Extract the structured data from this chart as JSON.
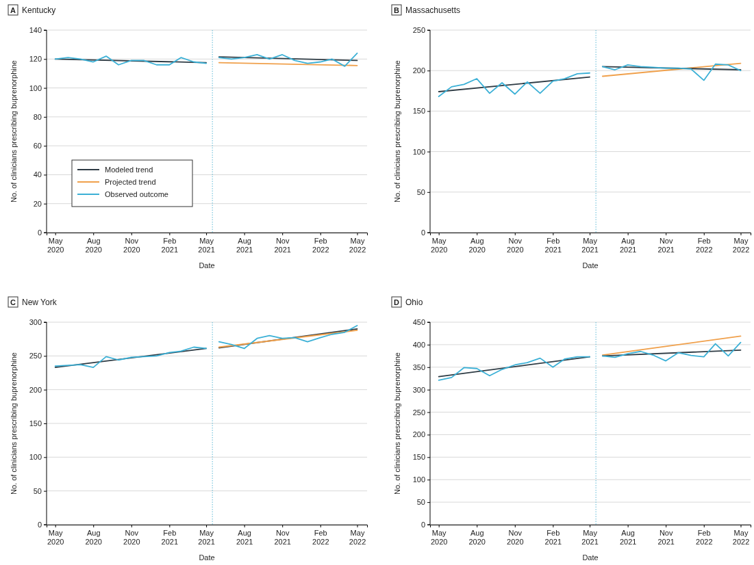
{
  "chart_data": [
    {
      "type": "line",
      "title": "A Kentucky",
      "xlabel": "Date",
      "ylabel": "No. of clinicians prescribing buprenorphine",
      "xlim": [
        "2020-04-10",
        "2022-05-25"
      ],
      "xticks": [
        {
          "value": "2020-05",
          "label": "May 2020"
        },
        {
          "value": "2020-08",
          "label": "Aug 2020"
        },
        {
          "value": "2020-11",
          "label": "Nov 2020"
        },
        {
          "value": "2021-02",
          "label": "Feb 2021"
        },
        {
          "value": "2021-05",
          "label": "May 2021"
        },
        {
          "value": "2021-08",
          "label": "Aug 2021"
        },
        {
          "value": "2021-11",
          "label": "Nov 2021"
        },
        {
          "value": "2022-02",
          "label": "Feb 2022"
        },
        {
          "value": "2022-05",
          "label": "May 2022"
        }
      ],
      "ylim": [
        0,
        140
      ],
      "yticks": [
        0,
        20,
        40,
        60,
        80,
        100,
        120,
        140
      ],
      "grid": "y",
      "legend": "bottom left",
      "marker": "none",
      "line_style": "solid",
      "ref_lines": [
        {
          "axis": "x",
          "value": "2021-05-16",
          "color": "#5bb8d6",
          "line_style": "dotted"
        }
      ],
      "series": [
        {
          "name": "Modeled trend",
          "color": "#2e3b44",
          "x": [
            "2020-05",
            "2021-05"
          ],
          "values": [
            120,
            117.5
          ]
        },
        {
          "name": "Projected trend",
          "color": "#f0a04b",
          "x": [
            "2021-06",
            "2022-05"
          ],
          "values": [
            117.5,
            115.5
          ]
        },
        {
          "name": "Observed outcome",
          "color": "#3bb0d6",
          "x": [
            "2020-05",
            "2020-06",
            "2020-07",
            "2020-08",
            "2020-09",
            "2020-10",
            "2020-11",
            "2020-12",
            "2021-01",
            "2021-02",
            "2021-03",
            "2021-04",
            "2021-05"
          ],
          "values": [
            120,
            121,
            120,
            118,
            122,
            116,
            119,
            119,
            116,
            116,
            121,
            118,
            117
          ]
        },
        {
          "color": "#2e3b44",
          "x": [
            "2021-06",
            "2022-05"
          ],
          "values": [
            121.5,
            119
          ]
        },
        {
          "color": "#3bb0d6",
          "x": [
            "2021-06",
            "2021-07",
            "2021-08",
            "2021-09",
            "2021-10",
            "2021-11",
            "2021-12",
            "2022-01",
            "2022-02",
            "2022-03",
            "2022-04",
            "2022-05"
          ],
          "values": [
            121,
            120,
            121,
            123,
            120,
            123,
            119,
            117,
            118,
            120,
            115,
            124
          ]
        }
      ]
    },
    {
      "type": "line",
      "title": "B Massachusetts",
      "xlabel": "Date",
      "ylabel": "No. of clinicians prescribing buprenorphine",
      "xlim": [
        "2020-04-10",
        "2022-05-25"
      ],
      "xticks": [
        {
          "value": "2020-05",
          "label": "May 2020"
        },
        {
          "value": "2020-08",
          "label": "Aug 2020"
        },
        {
          "value": "2020-11",
          "label": "Nov 2020"
        },
        {
          "value": "2021-02",
          "label": "Feb 2021"
        },
        {
          "value": "2021-05",
          "label": "May 2021"
        },
        {
          "value": "2021-08",
          "label": "Aug 2021"
        },
        {
          "value": "2021-11",
          "label": "Nov 2021"
        },
        {
          "value": "2022-02",
          "label": "Feb 2022"
        },
        {
          "value": "2022-05",
          "label": "May 2022"
        }
      ],
      "ylim": [
        0,
        250
      ],
      "yticks": [
        0,
        50,
        100,
        150,
        200,
        250
      ],
      "grid": "y",
      "marker": "none",
      "line_style": "solid",
      "ref_lines": [
        {
          "axis": "x",
          "value": "2021-05-16",
          "color": "#5bb8d6",
          "line_style": "dotted"
        }
      ],
      "series": [
        {
          "color": "#2e3b44",
          "x": [
            "2020-05",
            "2021-05"
          ],
          "values": [
            174,
            192
          ]
        },
        {
          "color": "#f0a04b",
          "x": [
            "2021-06",
            "2022-05"
          ],
          "values": [
            193,
            209
          ]
        },
        {
          "color": "#3bb0d6",
          "x": [
            "2020-05",
            "2020-06",
            "2020-07",
            "2020-08",
            "2020-09",
            "2020-10",
            "2020-11",
            "2020-12",
            "2021-01",
            "2021-02",
            "2021-03",
            "2021-04",
            "2021-05"
          ],
          "values": [
            168,
            180,
            183,
            190,
            172,
            185,
            171,
            186,
            172,
            187,
            190,
            196,
            197
          ]
        },
        {
          "color": "#2e3b44",
          "x": [
            "2021-06",
            "2022-05"
          ],
          "values": [
            205,
            201
          ]
        },
        {
          "color": "#3bb0d6",
          "x": [
            "2021-06",
            "2021-07",
            "2021-08",
            "2021-09",
            "2021-10",
            "2021-11",
            "2021-12",
            "2022-01",
            "2022-02",
            "2022-03",
            "2022-04",
            "2022-05"
          ],
          "values": [
            205,
            201,
            207,
            205,
            204,
            203,
            203,
            202,
            188,
            208,
            207,
            200
          ]
        }
      ]
    },
    {
      "type": "line",
      "title": "C New York",
      "xlabel": "Date",
      "ylabel": "No. of clinicians prescribing buprenorphine",
      "xlim": [
        "2020-04-10",
        "2022-05-25"
      ],
      "xticks": [
        {
          "value": "2020-05",
          "label": "May 2020"
        },
        {
          "value": "2020-08",
          "label": "Aug 2020"
        },
        {
          "value": "2020-11",
          "label": "Nov 2020"
        },
        {
          "value": "2021-02",
          "label": "Feb 2021"
        },
        {
          "value": "2021-05",
          "label": "May 2021"
        },
        {
          "value": "2021-08",
          "label": "Aug 2021"
        },
        {
          "value": "2021-11",
          "label": "Nov 2021"
        },
        {
          "value": "2022-02",
          "label": "Feb 2022"
        },
        {
          "value": "2022-05",
          "label": "May 2022"
        }
      ],
      "ylim": [
        0,
        300
      ],
      "yticks": [
        0,
        50,
        100,
        150,
        200,
        250,
        300
      ],
      "grid": "y",
      "marker": "none",
      "line_style": "solid",
      "ref_lines": [
        {
          "axis": "x",
          "value": "2021-05-16",
          "color": "#5bb8d6",
          "line_style": "dotted"
        }
      ],
      "series": [
        {
          "color": "#2e3b44",
          "x": [
            "2020-05",
            "2021-05"
          ],
          "values": [
            233,
            261
          ]
        },
        {
          "color": "#2e3b44",
          "x": [
            "2021-06",
            "2022-05"
          ],
          "values": [
            262,
            290
          ]
        },
        {
          "color": "#f0a04b",
          "x": [
            "2021-06",
            "2022-05"
          ],
          "values": [
            263,
            288
          ]
        },
        {
          "color": "#3bb0d6",
          "x": [
            "2020-05",
            "2020-06",
            "2020-07",
            "2020-08",
            "2020-09",
            "2020-10",
            "2020-11",
            "2020-12",
            "2021-01",
            "2021-02",
            "2021-03",
            "2021-04",
            "2021-05"
          ],
          "values": [
            235,
            236,
            237,
            233,
            249,
            244,
            248,
            249,
            250,
            255,
            257,
            263,
            261
          ]
        },
        {
          "color": "#3bb0d6",
          "x": [
            "2021-06",
            "2021-07",
            "2021-08",
            "2021-09",
            "2021-10",
            "2021-11",
            "2021-12",
            "2022-01",
            "2022-02",
            "2022-03",
            "2022-04",
            "2022-05"
          ],
          "values": [
            271,
            267,
            261,
            276,
            280,
            276,
            277,
            271,
            277,
            282,
            285,
            295
          ]
        }
      ]
    },
    {
      "type": "line",
      "title": "D Ohio",
      "xlabel": "Date",
      "ylabel": "No. of clinicians prescribing buprenorphine",
      "xlim": [
        "2020-04-10",
        "2022-05-25"
      ],
      "xticks": [
        {
          "value": "2020-05",
          "label": "May 2020"
        },
        {
          "value": "2020-08",
          "label": "Aug 2020"
        },
        {
          "value": "2020-11",
          "label": "Nov 2020"
        },
        {
          "value": "2021-02",
          "label": "Feb 2021"
        },
        {
          "value": "2021-05",
          "label": "May 2021"
        },
        {
          "value": "2021-08",
          "label": "Aug 2021"
        },
        {
          "value": "2021-11",
          "label": "Nov 2021"
        },
        {
          "value": "2022-02",
          "label": "Feb 2022"
        },
        {
          "value": "2022-05",
          "label": "May 2022"
        }
      ],
      "ylim": [
        0,
        450
      ],
      "yticks": [
        0,
        50,
        100,
        150,
        200,
        250,
        300,
        350,
        400,
        450
      ],
      "grid": "y",
      "marker": "none",
      "line_style": "solid",
      "ref_lines": [
        {
          "axis": "x",
          "value": "2021-05-16",
          "color": "#5bb8d6",
          "line_style": "dotted"
        }
      ],
      "series": [
        {
          "color": "#2e3b44",
          "x": [
            "2020-05",
            "2021-05"
          ],
          "values": [
            329,
            373
          ]
        },
        {
          "color": "#f0a04b",
          "x": [
            "2021-06",
            "2022-05"
          ],
          "values": [
            377,
            419
          ]
        },
        {
          "color": "#2e3b44",
          "x": [
            "2021-06",
            "2022-05"
          ],
          "values": [
            375,
            388
          ]
        },
        {
          "color": "#3bb0d6",
          "x": [
            "2020-05",
            "2020-06",
            "2020-07",
            "2020-08",
            "2020-09",
            "2020-10",
            "2020-11",
            "2020-12",
            "2021-01",
            "2021-02",
            "2021-03",
            "2021-04",
            "2021-05"
          ],
          "values": [
            321,
            327,
            349,
            347,
            331,
            345,
            355,
            360,
            370,
            350,
            368,
            373,
            373
          ]
        },
        {
          "color": "#3bb0d6",
          "x": [
            "2021-06",
            "2021-07",
            "2021-08",
            "2021-09",
            "2021-10",
            "2021-11",
            "2021-12",
            "2022-01",
            "2022-02",
            "2022-03",
            "2022-04",
            "2022-05"
          ],
          "values": [
            375,
            372,
            380,
            385,
            377,
            364,
            382,
            376,
            373,
            402,
            375,
            405
          ]
        }
      ]
    }
  ]
}
